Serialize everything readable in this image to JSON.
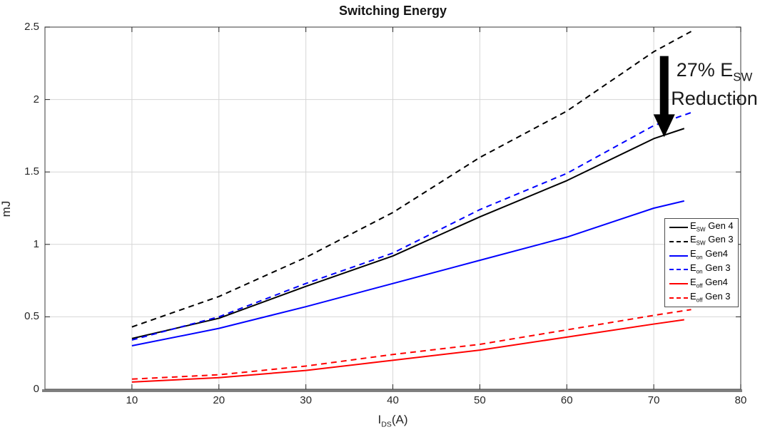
{
  "title": "Switching Energy",
  "ylabel": "mJ",
  "xlabel": {
    "main": "I",
    "sub": "DS",
    "suffix": "(A)"
  },
  "annotation": {
    "line1_main": "27% E",
    "line1_sub": "SW",
    "line2": "Reduction"
  },
  "colors": {
    "black_series": "#000000",
    "blue_series": "#0000ff",
    "red_series": "#ff0000",
    "grid": "#d6d6d6",
    "axis_box": "#595959",
    "bottom_axis": "#808080",
    "tick": "#262626",
    "arrow": "#000000"
  },
  "chart_data": {
    "type": "line",
    "title": "Switching Energy",
    "xlabel": "I_DS(A)",
    "ylabel": "mJ",
    "xlim": [
      0,
      80
    ],
    "ylim": [
      0,
      2.5
    ],
    "xticks": [
      10,
      20,
      30,
      40,
      50,
      60,
      70,
      80
    ],
    "yticks": [
      0,
      0.5,
      1,
      1.5,
      2,
      2.5
    ],
    "ytick_labels": [
      "0",
      "0.5",
      "1",
      "1.5",
      "2",
      "2.5"
    ],
    "grid": true,
    "legend_position": "right-middle",
    "series": [
      {
        "name": "E_SW Gen 4",
        "label_main": "E",
        "label_sub": "SW",
        "label_rest": " Gen 4",
        "color": "#000000",
        "style": "solid",
        "x": [
          10,
          20,
          30,
          40,
          50,
          60,
          70,
          73.5
        ],
        "y": [
          0.35,
          0.49,
          0.71,
          0.92,
          1.19,
          1.44,
          1.73,
          1.8
        ]
      },
      {
        "name": "E_SW Gen 3",
        "label_main": "E",
        "label_sub": "SW",
        "label_rest": " Gen 3",
        "color": "#000000",
        "style": "dashed",
        "x": [
          10,
          20,
          30,
          40,
          50,
          60,
          70,
          74.3
        ],
        "y": [
          0.43,
          0.64,
          0.91,
          1.22,
          1.6,
          1.92,
          2.33,
          2.47
        ]
      },
      {
        "name": "E_on Gen4",
        "label_main": "E",
        "label_sub": "on",
        "label_rest": " Gen4",
        "color": "#0000ff",
        "style": "solid",
        "x": [
          10,
          20,
          30,
          40,
          50,
          60,
          70,
          73.5
        ],
        "y": [
          0.3,
          0.42,
          0.57,
          0.73,
          0.89,
          1.05,
          1.25,
          1.3
        ]
      },
      {
        "name": "E_on Gen 3",
        "label_main": "E",
        "label_sub": "on",
        "label_rest": " Gen 3",
        "color": "#0000ff",
        "style": "dashed",
        "x": [
          10,
          20,
          30,
          40,
          50,
          60,
          70,
          74.3
        ],
        "y": [
          0.34,
          0.5,
          0.73,
          0.94,
          1.24,
          1.49,
          1.82,
          1.91
        ]
      },
      {
        "name": "E_off Gen4",
        "label_main": "E",
        "label_sub": "off",
        "label_rest": " Gen4",
        "color": "#ff0000",
        "style": "solid",
        "x": [
          10,
          20,
          30,
          40,
          50,
          60,
          70,
          73.5
        ],
        "y": [
          0.05,
          0.08,
          0.13,
          0.2,
          0.27,
          0.36,
          0.45,
          0.48
        ]
      },
      {
        "name": "E_off Gen 3",
        "label_main": "E",
        "label_sub": "off",
        "label_rest": " Gen 3",
        "color": "#ff0000",
        "style": "dashed",
        "x": [
          10,
          20,
          30,
          40,
          50,
          60,
          70,
          74.3
        ],
        "y": [
          0.07,
          0.1,
          0.16,
          0.24,
          0.31,
          0.41,
          0.51,
          0.55
        ]
      }
    ],
    "annotation": {
      "text": "27% E_SW Reduction",
      "arrow_x": 71.2,
      "arrow_y_from": 2.3,
      "arrow_y_to": 1.74
    }
  }
}
